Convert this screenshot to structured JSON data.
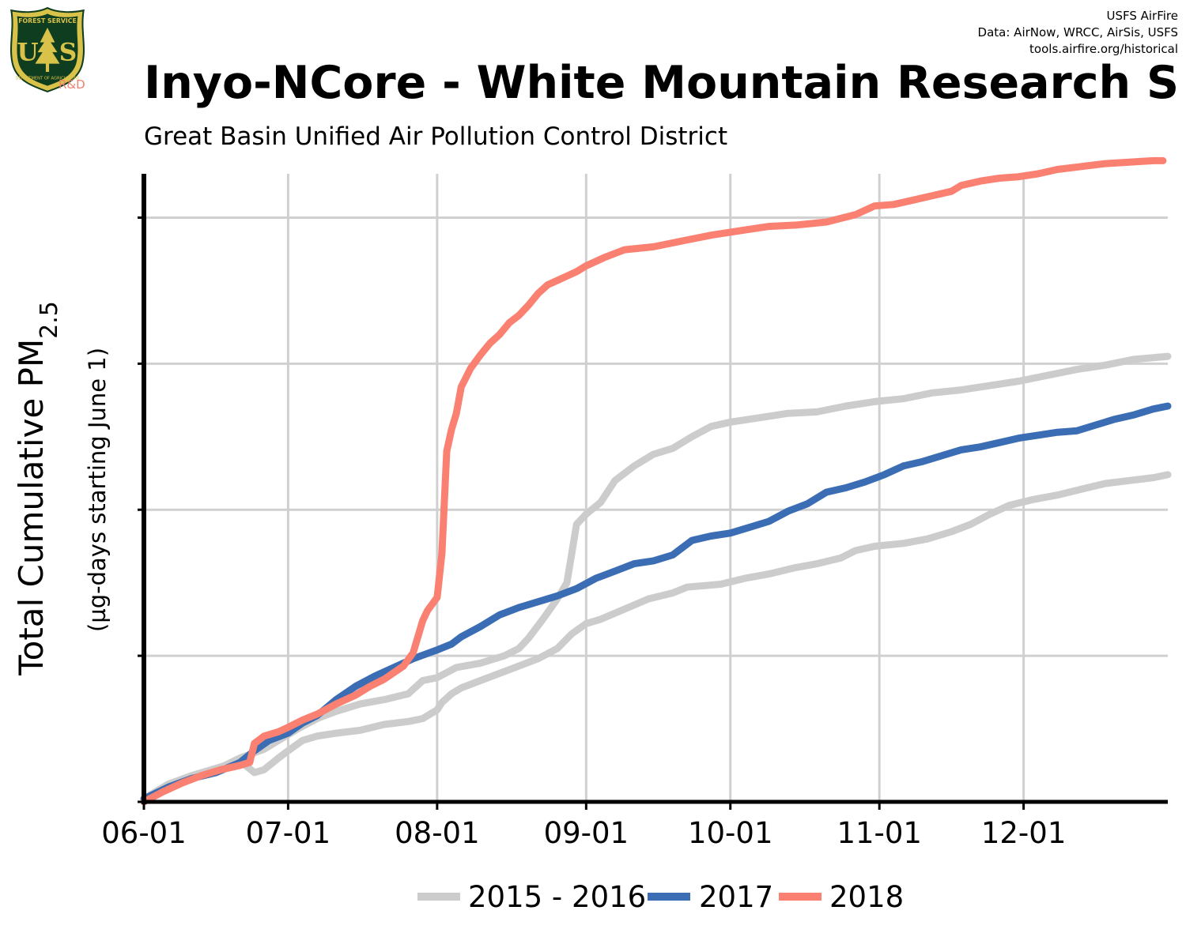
{
  "header": {
    "logo_alt": "US Forest Service shield",
    "logo_lettering": [
      "FOREST SERVICE",
      "U",
      "S",
      "DEPARTMENT OF AGRICULTURE"
    ],
    "logo_suffix": "R&D",
    "credits": [
      "USFS AirFire",
      "Data: AirNow, WRCC, AirSis, USFS",
      "tools.airfire.org/historical"
    ],
    "title": "Inyo-NCore - White Mountain Research S",
    "subtitle": "Great Basin Unified Air Pollution Control District"
  },
  "colors": {
    "series_2015_2016": "#cccccc",
    "series_2017": "#3a6db3",
    "series_2018": "#fa8072",
    "grid": "#d0d0d0",
    "axis": "#000000",
    "logo_shield": "#0f3d1f",
    "logo_gold": "#d9c24a"
  },
  "chart_data": {
    "type": "line",
    "ylabel_main": "Total Cumulative PM",
    "ylabel_sub": "2.5",
    "ylabel_secondary": "(µg-days starting June 1)",
    "x_ticks": [
      "06-01",
      "07-01",
      "08-01",
      "09-01",
      "10-01",
      "11-01",
      "12-01"
    ],
    "x_tick_days": [
      0,
      30,
      61,
      92,
      122,
      153,
      183
    ],
    "x_range_days": [
      0,
      213
    ],
    "y_range": [
      0,
      4.3
    ],
    "y_ticks_unlabeled": [
      0,
      1,
      2,
      3,
      4
    ],
    "grid": true,
    "legend_position": "bottom",
    "series": [
      {
        "name": "2015 - 2016",
        "color_key": "series_2015_2016",
        "points": [
          [
            0,
            0.02
          ],
          [
            5,
            0.12
          ],
          [
            10,
            0.18
          ],
          [
            15,
            0.23
          ],
          [
            20,
            0.28
          ],
          [
            23,
            0.2
          ],
          [
            25,
            0.22
          ],
          [
            28,
            0.3
          ],
          [
            30,
            0.35
          ],
          [
            33,
            0.42
          ],
          [
            36,
            0.45
          ],
          [
            40,
            0.47
          ],
          [
            45,
            0.49
          ],
          [
            50,
            0.53
          ],
          [
            55,
            0.55
          ],
          [
            58,
            0.57
          ],
          [
            61,
            0.63
          ],
          [
            62,
            0.68
          ],
          [
            64,
            0.74
          ],
          [
            66,
            0.78
          ],
          [
            70,
            0.83
          ],
          [
            74,
            0.88
          ],
          [
            78,
            0.93
          ],
          [
            82,
            0.98
          ],
          [
            86,
            1.05
          ],
          [
            89,
            1.15
          ],
          [
            92,
            1.22
          ],
          [
            95,
            1.25
          ],
          [
            100,
            1.32
          ],
          [
            105,
            1.39
          ],
          [
            110,
            1.43
          ],
          [
            113,
            1.47
          ],
          [
            120,
            1.49
          ],
          [
            125,
            1.53
          ],
          [
            130,
            1.56
          ],
          [
            135,
            1.6
          ],
          [
            140,
            1.63
          ],
          [
            145,
            1.67
          ],
          [
            148,
            1.72
          ],
          [
            152,
            1.75
          ],
          [
            158,
            1.77
          ],
          [
            163,
            1.8
          ],
          [
            168,
            1.85
          ],
          [
            172,
            1.9
          ],
          [
            176,
            1.97
          ],
          [
            180,
            2.03
          ],
          [
            185,
            2.07
          ],
          [
            190,
            2.1
          ],
          [
            195,
            2.14
          ],
          [
            200,
            2.18
          ],
          [
            205,
            2.2
          ],
          [
            210,
            2.22
          ],
          [
            213,
            2.24
          ]
        ]
      },
      {
        "name": "2015 - 2016",
        "color_key": "series_2015_2016",
        "points": [
          [
            0,
            0.02
          ],
          [
            5,
            0.12
          ],
          [
            10,
            0.18
          ],
          [
            15,
            0.22
          ],
          [
            20,
            0.3
          ],
          [
            25,
            0.36
          ],
          [
            28,
            0.42
          ],
          [
            32,
            0.5
          ],
          [
            36,
            0.57
          ],
          [
            40,
            0.62
          ],
          [
            45,
            0.67
          ],
          [
            50,
            0.7
          ],
          [
            55,
            0.74
          ],
          [
            58,
            0.83
          ],
          [
            61,
            0.85
          ],
          [
            65,
            0.92
          ],
          [
            70,
            0.95
          ],
          [
            75,
            1.0
          ],
          [
            78,
            1.05
          ],
          [
            80,
            1.12
          ],
          [
            83,
            1.25
          ],
          [
            86,
            1.39
          ],
          [
            88,
            1.5
          ],
          [
            89,
            1.7
          ],
          [
            90,
            1.9
          ],
          [
            92,
            1.97
          ],
          [
            95,
            2.05
          ],
          [
            98,
            2.2
          ],
          [
            102,
            2.3
          ],
          [
            106,
            2.38
          ],
          [
            110,
            2.42
          ],
          [
            114,
            2.5
          ],
          [
            118,
            2.57
          ],
          [
            122,
            2.6
          ],
          [
            128,
            2.63
          ],
          [
            134,
            2.66
          ],
          [
            140,
            2.67
          ],
          [
            146,
            2.71
          ],
          [
            152,
            2.74
          ],
          [
            158,
            2.76
          ],
          [
            164,
            2.8
          ],
          [
            170,
            2.82
          ],
          [
            176,
            2.85
          ],
          [
            182,
            2.88
          ],
          [
            188,
            2.92
          ],
          [
            194,
            2.96
          ],
          [
            200,
            2.99
          ],
          [
            206,
            3.03
          ],
          [
            213,
            3.05
          ]
        ]
      },
      {
        "name": "2017",
        "color_key": "series_2017",
        "points": [
          [
            0,
            0.02
          ],
          [
            5,
            0.1
          ],
          [
            10,
            0.16
          ],
          [
            15,
            0.2
          ],
          [
            20,
            0.27
          ],
          [
            23,
            0.35
          ],
          [
            26,
            0.42
          ],
          [
            30,
            0.47
          ],
          [
            33,
            0.54
          ],
          [
            36,
            0.59
          ],
          [
            40,
            0.7
          ],
          [
            44,
            0.79
          ],
          [
            48,
            0.86
          ],
          [
            52,
            0.92
          ],
          [
            56,
            0.98
          ],
          [
            61,
            1.04
          ],
          [
            64,
            1.08
          ],
          [
            66,
            1.13
          ],
          [
            70,
            1.2
          ],
          [
            74,
            1.28
          ],
          [
            78,
            1.33
          ],
          [
            82,
            1.37
          ],
          [
            86,
            1.41
          ],
          [
            90,
            1.46
          ],
          [
            94,
            1.53
          ],
          [
            98,
            1.58
          ],
          [
            102,
            1.63
          ],
          [
            106,
            1.65
          ],
          [
            110,
            1.69
          ],
          [
            114,
            1.79
          ],
          [
            118,
            1.82
          ],
          [
            122,
            1.84
          ],
          [
            126,
            1.88
          ],
          [
            130,
            1.92
          ],
          [
            134,
            1.99
          ],
          [
            138,
            2.04
          ],
          [
            142,
            2.12
          ],
          [
            146,
            2.15
          ],
          [
            150,
            2.19
          ],
          [
            154,
            2.24
          ],
          [
            158,
            2.3
          ],
          [
            162,
            2.33
          ],
          [
            166,
            2.37
          ],
          [
            170,
            2.41
          ],
          [
            174,
            2.43
          ],
          [
            178,
            2.46
          ],
          [
            182,
            2.49
          ],
          [
            186,
            2.51
          ],
          [
            190,
            2.53
          ],
          [
            194,
            2.54
          ],
          [
            198,
            2.58
          ],
          [
            202,
            2.62
          ],
          [
            206,
            2.65
          ],
          [
            210,
            2.69
          ],
          [
            213,
            2.71
          ]
        ]
      },
      {
        "name": "2018",
        "color_key": "series_2018",
        "points": [
          [
            0,
            0
          ],
          [
            4,
            0.07
          ],
          [
            8,
            0.13
          ],
          [
            12,
            0.18
          ],
          [
            16,
            0.22
          ],
          [
            20,
            0.25
          ],
          [
            22,
            0.27
          ],
          [
            23,
            0.4
          ],
          [
            25,
            0.45
          ],
          [
            28,
            0.48
          ],
          [
            30,
            0.51
          ],
          [
            33,
            0.56
          ],
          [
            36,
            0.6
          ],
          [
            40,
            0.67
          ],
          [
            44,
            0.73
          ],
          [
            47,
            0.79
          ],
          [
            50,
            0.84
          ],
          [
            54,
            0.93
          ],
          [
            56,
            1.02
          ],
          [
            58,
            1.24
          ],
          [
            59,
            1.31
          ],
          [
            61,
            1.4
          ],
          [
            62,
            1.7
          ],
          [
            63,
            2.4
          ],
          [
            64,
            2.55
          ],
          [
            65,
            2.66
          ],
          [
            66,
            2.84
          ],
          [
            68,
            2.97
          ],
          [
            70,
            3.06
          ],
          [
            72,
            3.14
          ],
          [
            74,
            3.2
          ],
          [
            76,
            3.28
          ],
          [
            78,
            3.33
          ],
          [
            80,
            3.4
          ],
          [
            82,
            3.48
          ],
          [
            84,
            3.54
          ],
          [
            86,
            3.57
          ],
          [
            88,
            3.6
          ],
          [
            90,
            3.63
          ],
          [
            92,
            3.67
          ],
          [
            96,
            3.73
          ],
          [
            100,
            3.78
          ],
          [
            106,
            3.8
          ],
          [
            112,
            3.84
          ],
          [
            118,
            3.88
          ],
          [
            124,
            3.91
          ],
          [
            130,
            3.94
          ],
          [
            136,
            3.95
          ],
          [
            142,
            3.97
          ],
          [
            148,
            4.02
          ],
          [
            152,
            4.08
          ],
          [
            156,
            4.09
          ],
          [
            160,
            4.12
          ],
          [
            164,
            4.15
          ],
          [
            168,
            4.18
          ],
          [
            170,
            4.22
          ],
          [
            174,
            4.25
          ],
          [
            178,
            4.27
          ],
          [
            182,
            4.28
          ],
          [
            186,
            4.3
          ],
          [
            190,
            4.33
          ],
          [
            195,
            4.35
          ],
          [
            200,
            4.37
          ],
          [
            205,
            4.38
          ],
          [
            210,
            4.39
          ],
          [
            212,
            4.39
          ]
        ]
      }
    ],
    "legend": [
      {
        "label": "2015 - 2016",
        "color_key": "series_2015_2016"
      },
      {
        "label": "2017",
        "color_key": "series_2017"
      },
      {
        "label": "2018",
        "color_key": "series_2018"
      }
    ]
  }
}
